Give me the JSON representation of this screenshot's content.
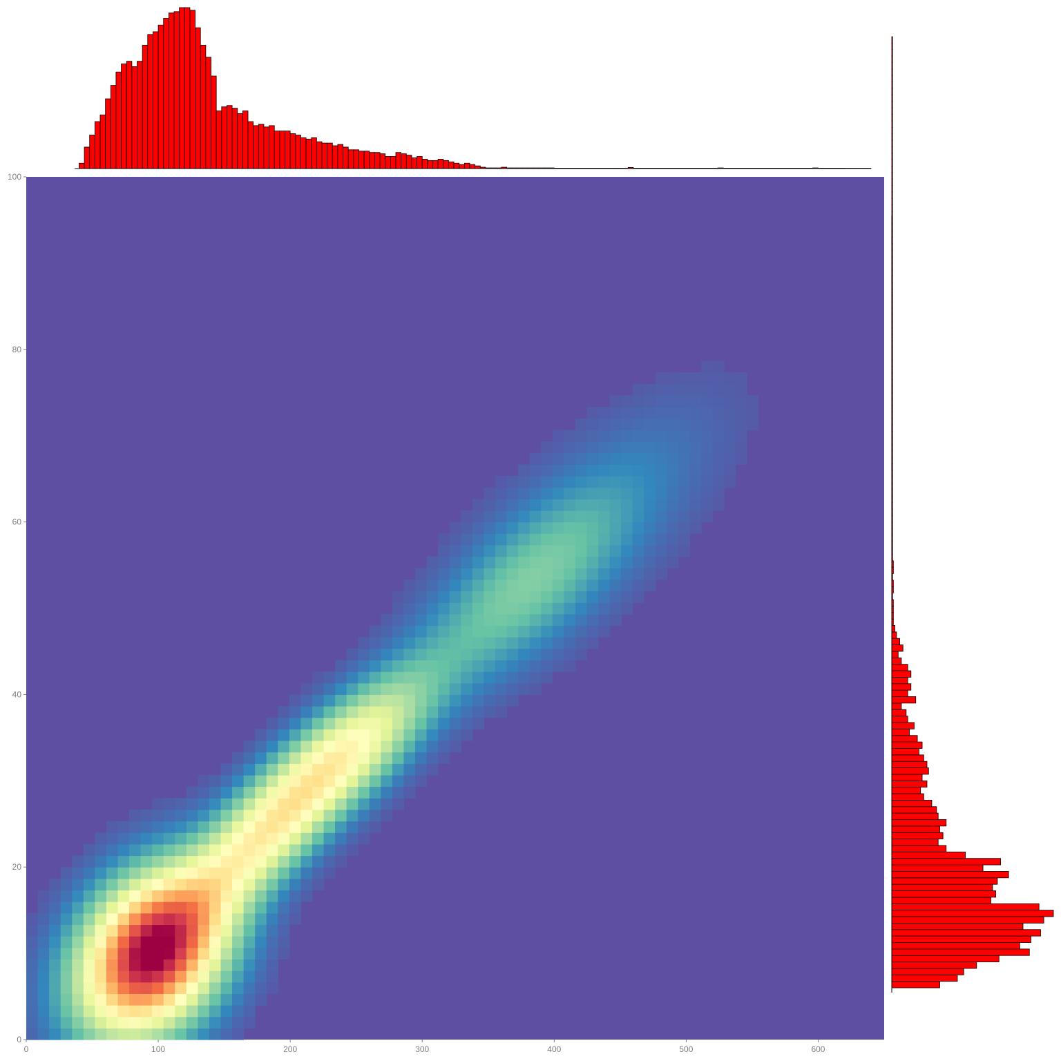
{
  "chart_data": [
    {
      "type": "heatmap",
      "title": "",
      "xlabel": "",
      "ylabel": "",
      "xlim": [
        0,
        650
      ],
      "ylim": [
        0,
        100
      ],
      "x_ticks": [
        "0",
        "100",
        "200",
        "300",
        "400",
        "500",
        "600"
      ],
      "y_ticks": [
        "0",
        "20",
        "40",
        "60",
        "80",
        "100"
      ],
      "colormap": "Spectral (low = purple, high = dark red)",
      "colors": [
        "#5e4fa2",
        "#3288bd",
        "#66c2a5",
        "#abdda4",
        "#e6f598",
        "#ffffbf",
        "#fee08b",
        "#fdae61",
        "#f46d43",
        "#d53e4f",
        "#9e0142"
      ],
      "density_peaks": [
        {
          "x": 95,
          "y": 10,
          "relative_density": 1.0
        },
        {
          "x": 180,
          "y": 24,
          "relative_density": 0.5
        },
        {
          "x": 250,
          "y": 34,
          "relative_density": 0.42
        },
        {
          "x": 375,
          "y": 52,
          "relative_density": 0.2
        },
        {
          "x": 440,
          "y": 62,
          "relative_density": 0.07
        }
      ],
      "grid": false,
      "legend": "none"
    },
    {
      "type": "bar",
      "orientation": "vertical",
      "description": "marginal histogram of x",
      "bins": {
        "start": 40,
        "width": 4
      },
      "values": [
        4,
        16,
        25,
        35,
        40,
        52,
        62,
        72,
        78,
        80,
        76,
        80,
        92,
        100,
        102,
        107,
        112,
        116,
        117,
        120,
        120,
        118,
        105,
        92,
        83,
        69,
        43,
        46,
        47,
        45,
        41,
        43,
        35,
        32,
        33,
        31,
        32,
        28,
        28,
        28,
        26,
        25,
        23,
        22,
        23,
        20,
        19,
        19,
        17,
        18,
        16,
        14,
        14,
        13,
        13,
        12,
        12,
        11,
        9,
        9,
        12,
        11,
        10,
        8,
        9,
        7,
        6,
        6,
        7,
        6,
        5,
        4,
        3,
        4,
        3,
        2,
        1,
        0.5,
        0.5,
        0.5,
        1,
        0.5,
        0.5,
        0.5,
        0.5,
        0.5,
        0.5,
        0.5,
        0.5,
        0.5,
        0.3,
        0.3,
        0.3,
        0.3,
        0.3,
        0.3,
        0.3,
        0.3,
        0.3,
        0.3,
        0.3,
        0.3,
        0.3,
        0.3,
        0.8,
        0.3,
        0.3,
        0.3,
        0.3,
        0.3,
        0.3,
        0.3,
        0.3,
        0.3,
        0.3,
        0.3,
        0.3,
        0.3,
        0.3,
        0.3,
        0.3,
        0.5,
        0.3,
        0.3,
        0.3,
        0.3,
        0.3,
        0.3,
        0.3,
        0.3,
        0.3,
        0.3,
        0.3,
        0.3,
        0.3,
        0.3,
        0.3,
        0.3,
        0.3,
        0.5,
        0.3,
        0.3,
        0.3,
        0.3,
        0.3,
        0.3,
        0.3,
        0.3,
        0.3,
        0.3
      ],
      "fill": "#ff0000",
      "outline": "#000000"
    },
    {
      "type": "bar",
      "orientation": "horizontal",
      "description": "marginal histogram of y",
      "bins": {
        "start": 6,
        "width": 0.75
      },
      "values": [
        30,
        41,
        45,
        53,
        67,
        86,
        80,
        87,
        93,
        82,
        95,
        101,
        92,
        62,
        65,
        63,
        66,
        73,
        57,
        68,
        46,
        34,
        29,
        32,
        30,
        34,
        29,
        28,
        25,
        20,
        18,
        22,
        19,
        23,
        22,
        20,
        17,
        19,
        16,
        11,
        14,
        10,
        9,
        6,
        15,
        10,
        12,
        10,
        12,
        10,
        6,
        4,
        7,
        5,
        3,
        2,
        1,
        1,
        1,
        1,
        0.5,
        1,
        1,
        0.5,
        1,
        1,
        0.5,
        0.5,
        0.5,
        0.5,
        0.5,
        0.5,
        0.5,
        0.5,
        0.5,
        0.5,
        0.5,
        0.5,
        0.5,
        0.5,
        0.5,
        0.5,
        0.5,
        0.5,
        0.5,
        0.5,
        0.5,
        0.5,
        0.5,
        0.5,
        0.5,
        0.5,
        0.5,
        0.5,
        0.5,
        0.5,
        0.5,
        0.5,
        0.5,
        0.5,
        0.5,
        0.5,
        0.5,
        0.5,
        0.5,
        0.5,
        0.5,
        0.5,
        0.5,
        0.5,
        0.5,
        0.5,
        0.5,
        0.5,
        0.5,
        0.5,
        0.5,
        0.5,
        0.5,
        0.5,
        0.5,
        0.5,
        0.5,
        0.5,
        0.5,
        0.5,
        0.5,
        0.5,
        0.5,
        0.5,
        0.5,
        0.5,
        0.5,
        0.5,
        0.5,
        0.5,
        0.5,
        0.5,
        0.5,
        0.5,
        0.5,
        0.5,
        0.5,
        0.5,
        0.5,
        0.5,
        0.5
      ],
      "fill": "#ff0000",
      "outline": "#000000"
    }
  ]
}
